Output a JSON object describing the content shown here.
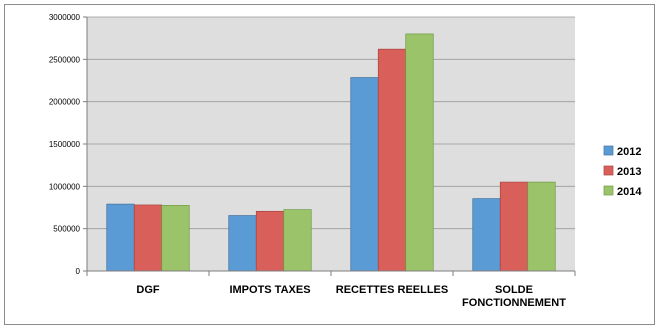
{
  "chart_data": {
    "type": "bar",
    "categories": [
      [
        "DGF"
      ],
      [
        "IMPOTS TAXES"
      ],
      [
        "RECETTES REELLES"
      ],
      [
        "SOLDE",
        "FONCTIONNEMENT"
      ]
    ],
    "series": [
      {
        "name": "2012",
        "color": "#5b9bd5",
        "stroke": "#41719c",
        "values": [
          790000,
          655000,
          2285000,
          855000
        ]
      },
      {
        "name": "2013",
        "color": "#d9605a",
        "stroke": "#a84440",
        "values": [
          780000,
          705000,
          2620000,
          1050000
        ]
      },
      {
        "name": "2014",
        "color": "#9bc46a",
        "stroke": "#6f9a43",
        "values": [
          775000,
          725000,
          2800000,
          1050000
        ]
      }
    ],
    "yticks": [
      0,
      500000,
      1000000,
      1500000,
      2000000,
      2500000,
      3000000
    ],
    "ytick_labels": [
      "0",
      "500000",
      "1000000",
      "1500000",
      "2000000",
      "2500000",
      "3000000"
    ],
    "ylim": [
      0,
      3000000
    ],
    "plot_background": "#dedede",
    "grid": true,
    "legend_position": "right"
  }
}
